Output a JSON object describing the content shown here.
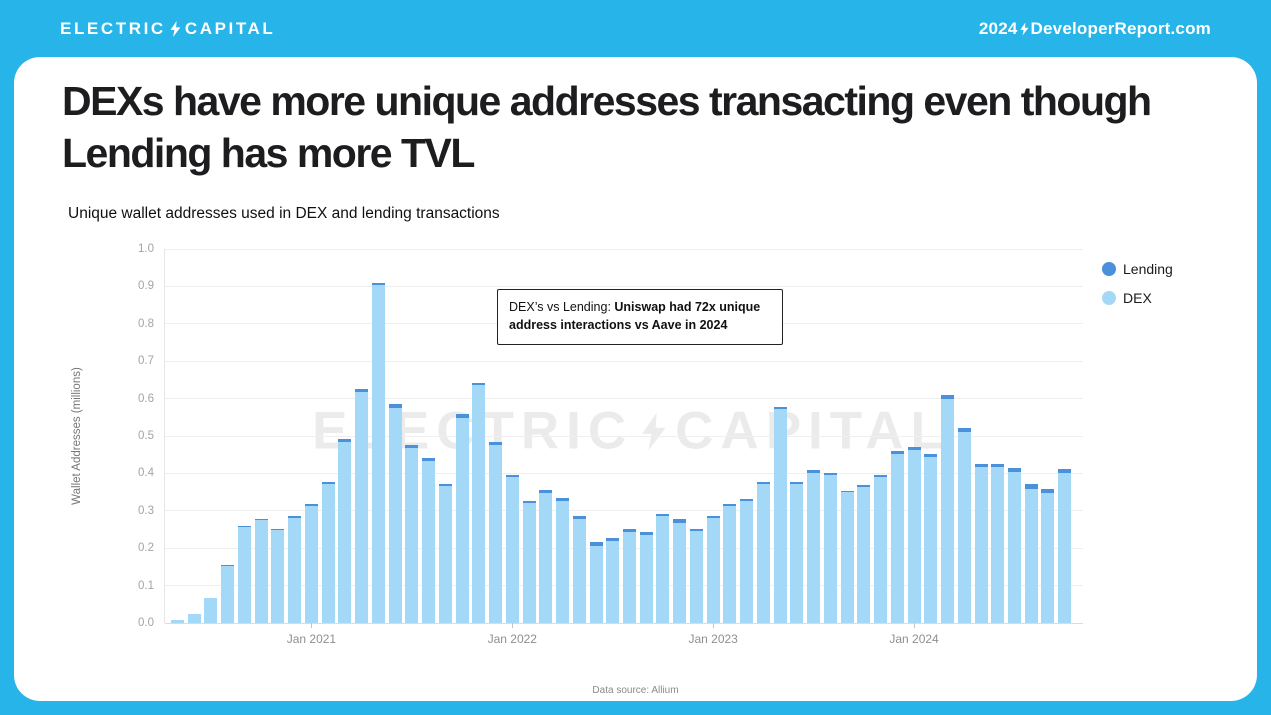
{
  "header": {
    "logo": {
      "part1": "ELECTRIC",
      "part2": "CAPITAL"
    },
    "site": {
      "part1": "2024",
      "part2": "DeveloperReport.com"
    }
  },
  "card": {
    "title": "DEXs have more unique addresses transacting even though Lending has more TVL",
    "subtitle": "Unique wallet addresses used in DEX and lending transactions",
    "annotation": {
      "prefix": "DEX’s vs Lending: ",
      "bold": "Uniswap had 72x unique address interactions vs Aave in 2024"
    },
    "watermark": {
      "part1": "ELECTRIC",
      "part2": "CAPITAL"
    },
    "footnote": "Data source: Allium"
  },
  "legend": [
    {
      "label": "Lending",
      "color": "#4A90DB"
    },
    {
      "label": "DEX",
      "color": "#A3D9F6"
    }
  ],
  "colors": {
    "background": "#27B4E8",
    "dex": "#A3D9F6",
    "lending": "#4A90DB"
  },
  "chart_data": {
    "type": "bar",
    "stacked": true,
    "title": "Unique wallet addresses used in DEX and lending transactions",
    "xlabel": "",
    "ylabel": "Wallet Addresses (millions)",
    "ylim": [
      0,
      1.0
    ],
    "yticks": [
      0.0,
      0.1,
      0.2,
      0.3,
      0.4,
      0.5,
      0.6,
      0.7,
      0.8,
      0.9,
      1.0
    ],
    "grid": true,
    "legend_position": "right",
    "categories": [
      "May 2020",
      "Jun 2020",
      "Jul 2020",
      "Aug 2020",
      "Sep 2020",
      "Oct 2020",
      "Nov 2020",
      "Dec 2020",
      "Jan 2021",
      "Feb 2021",
      "Mar 2021",
      "Apr 2021",
      "May 2021",
      "Jun 2021",
      "Jul 2021",
      "Aug 2021",
      "Sep 2021",
      "Oct 2021",
      "Nov 2021",
      "Dec 2021",
      "Jan 2022",
      "Feb 2022",
      "Mar 2022",
      "Apr 2022",
      "May 2022",
      "Jun 2022",
      "Jul 2022",
      "Aug 2022",
      "Sep 2022",
      "Oct 2022",
      "Nov 2022",
      "Dec 2022",
      "Jan 2023",
      "Feb 2023",
      "Mar 2023",
      "Apr 2023",
      "May 2023",
      "Jun 2023",
      "Jul 2023",
      "Aug 2023",
      "Sep 2023",
      "Oct 2023",
      "Nov 2023",
      "Dec 2023",
      "Jan 2024",
      "Feb 2024",
      "Mar 2024",
      "Apr 2024",
      "May 2024",
      "Jun 2024",
      "Jul 2024",
      "Aug 2024",
      "Sep 2024",
      "Oct 2024"
    ],
    "xticks": [
      {
        "label": "Jan 2021",
        "index": 8
      },
      {
        "label": "Jan 2022",
        "index": 20
      },
      {
        "label": "Jan 2023",
        "index": 32
      },
      {
        "label": "Jan 2024",
        "index": 44
      }
    ],
    "series": [
      {
        "name": "DEX",
        "color": "#A3D9F6",
        "values": [
          0.007,
          0.025,
          0.067,
          0.153,
          0.257,
          0.275,
          0.249,
          0.282,
          0.313,
          0.371,
          0.485,
          0.617,
          0.904,
          0.575,
          0.468,
          0.432,
          0.367,
          0.549,
          0.636,
          0.477,
          0.39,
          0.321,
          0.348,
          0.327,
          0.277,
          0.207,
          0.218,
          0.243,
          0.235,
          0.286,
          0.267,
          0.246,
          0.281,
          0.313,
          0.326,
          0.371,
          0.572,
          0.372,
          0.401,
          0.395,
          0.349,
          0.364,
          0.39,
          0.451,
          0.462,
          0.444,
          0.599,
          0.511,
          0.416,
          0.416,
          0.403,
          0.359,
          0.348,
          0.401
        ]
      },
      {
        "name": "Lending",
        "color": "#4A90DB",
        "values": [
          0.0,
          0.0,
          0.001,
          0.002,
          0.003,
          0.003,
          0.003,
          0.004,
          0.005,
          0.007,
          0.008,
          0.01,
          0.006,
          0.01,
          0.008,
          0.008,
          0.005,
          0.009,
          0.006,
          0.007,
          0.006,
          0.006,
          0.007,
          0.006,
          0.01,
          0.01,
          0.008,
          0.009,
          0.009,
          0.006,
          0.012,
          0.006,
          0.006,
          0.005,
          0.005,
          0.005,
          0.006,
          0.006,
          0.008,
          0.005,
          0.005,
          0.005,
          0.006,
          0.01,
          0.008,
          0.008,
          0.01,
          0.01,
          0.01,
          0.008,
          0.012,
          0.012,
          0.01,
          0.01
        ]
      }
    ]
  }
}
